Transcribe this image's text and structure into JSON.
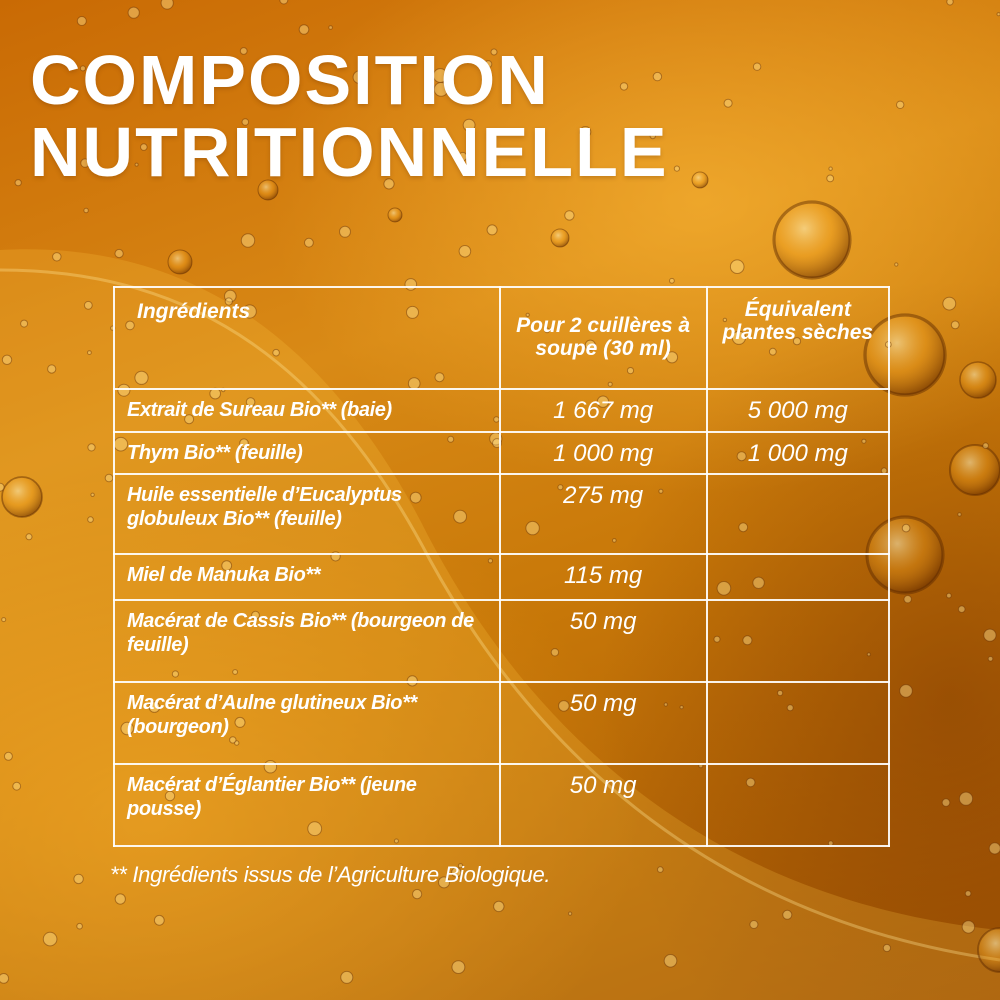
{
  "title": {
    "line1": "COMPOSITION",
    "line2": "NUTRITIONNELLE"
  },
  "table": {
    "headers": {
      "ingredients": "Ingrédients",
      "quantity": "Pour 2 cuillères à soupe (30 ml)",
      "equivalent": "Équivalent plantes sèches"
    },
    "rows": [
      {
        "ingredient": "Extrait de Sureau Bio** (baie)",
        "quantity": "1 667 mg",
        "equivalent": "5 000 mg"
      },
      {
        "ingredient": "Thym Bio** (feuille)",
        "quantity": "1 000 mg",
        "equivalent": "1 000 mg"
      },
      {
        "ingredient": "Huile essentielle d’Eucalyptus globuleux Bio** (feuille)",
        "quantity": "275 mg",
        "equivalent": ""
      },
      {
        "ingredient": "Miel de Manuka Bio**",
        "quantity": "115 mg",
        "equivalent": ""
      },
      {
        "ingredient": "Macérat de Cassis Bio** (bourgeon de feuille)",
        "quantity": "50 mg",
        "equivalent": ""
      },
      {
        "ingredient": "Macérat d’Aulne glutineux Bio** (bourgeon)",
        "quantity": "50 mg",
        "equivalent": ""
      },
      {
        "ingredient": "Macérat d’Églantier Bio** (jeune pousse)",
        "quantity": "50 mg",
        "equivalent": ""
      }
    ]
  },
  "footnote": "** Ingrédients issus de l’Agriculture Biologique.",
  "colors": {
    "text": "#ffffff",
    "background": "#d08112",
    "table_border": "#ffffff"
  }
}
